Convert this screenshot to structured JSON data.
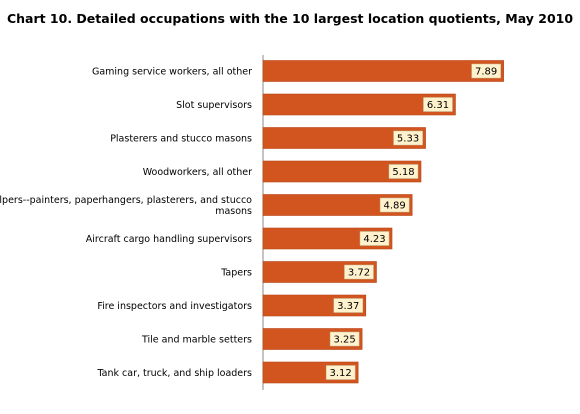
{
  "chart_data": {
    "type": "bar",
    "orientation": "horizontal",
    "title": "Chart 10. Detailed occupations  with the 10 largest location  quotients, May 2010",
    "xlabel": "",
    "ylabel": "",
    "xlim": [
      0,
      9
    ],
    "grid": false,
    "legend": "none",
    "categories": [
      "Gaming service workers, all other",
      "Slot supervisors",
      "Plasterers and stucco masons",
      "Woodworkers, all other",
      "Helpers--painters, paperhangers, plasterers, and stucco masons",
      "Aircraft cargo handling supervisors",
      "Tapers",
      "Fire inspectors and investigators",
      "Tile and marble setters",
      "Tank car, truck, and ship loaders"
    ],
    "category_lines": [
      [
        "Gaming service workers, all other"
      ],
      [
        "Slot supervisors"
      ],
      [
        "Plasterers and stucco masons"
      ],
      [
        "Woodworkers, all other"
      ],
      [
        "Helpers--painters, paperhangers, plasterers, and stucco",
        "masons"
      ],
      [
        "Aircraft cargo handling supervisors"
      ],
      [
        "Tapers"
      ],
      [
        "Fire inspectors and investigators"
      ],
      [
        "Tile and marble setters"
      ],
      [
        "Tank car, truck, and ship loaders"
      ]
    ],
    "values": [
      7.89,
      6.31,
      5.33,
      5.18,
      4.89,
      4.23,
      3.72,
      3.37,
      3.25,
      3.12
    ],
    "value_labels": [
      "7.89",
      "6.31",
      "5.33",
      "5.18",
      "4.89",
      "4.23",
      "3.72",
      "3.37",
      "3.25",
      "3.12"
    ],
    "colors": {
      "bar": "#d2541e",
      "bar_stroke": "#b8461a",
      "label_box": "#fff2cc",
      "label_box_stroke": "#c0c0a0",
      "axis": "#888888"
    }
  }
}
